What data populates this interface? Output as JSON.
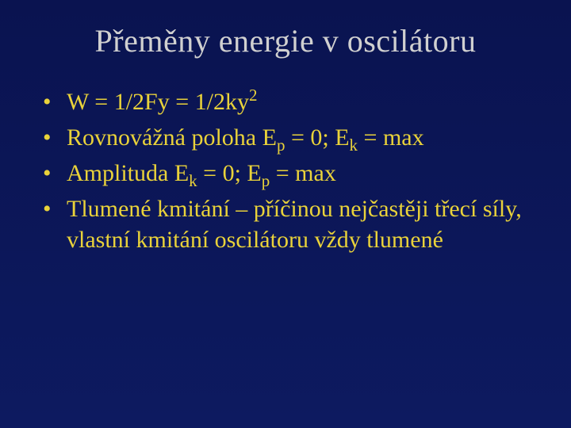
{
  "slide": {
    "background_color": "#0b1658",
    "text_color": "#e9d23a",
    "title_color": "#d0d0d0",
    "title_fontsize": 40,
    "bullet_fontsize": 30,
    "font_family": "Times New Roman"
  },
  "title": "Přeměny energie v oscilátoru",
  "bullets": [
    {
      "parts": [
        {
          "t": "W = 1/2Fy = 1/2ky"
        },
        {
          "t": "2",
          "sup": true
        }
      ]
    },
    {
      "parts": [
        {
          "t": "Rovnovážná poloha E"
        },
        {
          "t": "p",
          "sub": true
        },
        {
          "t": " = 0; E"
        },
        {
          "t": "k",
          "sub": true
        },
        {
          "t": " = max"
        }
      ]
    },
    {
      "parts": [
        {
          "t": "Amplituda E"
        },
        {
          "t": "k",
          "sub": true
        },
        {
          "t": " = 0; E"
        },
        {
          "t": "p",
          "sub": true
        },
        {
          "t": " = max"
        }
      ]
    },
    {
      "parts": [
        {
          "t": "Tlumené kmitání – příčinou nejčastěji třecí síly, vlastní kmitání oscilátoru vždy tlumené"
        }
      ]
    }
  ]
}
